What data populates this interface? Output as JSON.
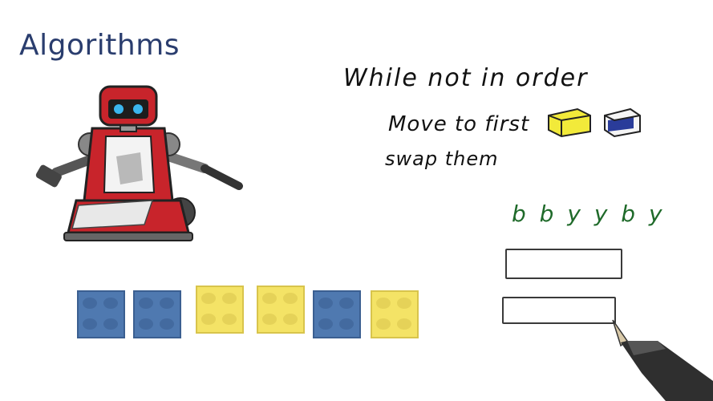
{
  "title": "Algorithms",
  "pseudocode": {
    "line1": "While not in order",
    "line2": "Move to first",
    "line3": "swap them"
  },
  "sequence_label": "b b y y b y",
  "bricks": [
    {
      "color": "blue",
      "hex": "#4f79b0"
    },
    {
      "color": "blue",
      "hex": "#4f79b0"
    },
    {
      "color": "yellow",
      "hex": "#f4e366"
    },
    {
      "color": "yellow",
      "hex": "#f4e366"
    },
    {
      "color": "blue",
      "hex": "#4f79b0"
    },
    {
      "color": "yellow",
      "hex": "#f4e366"
    }
  ],
  "icons": {
    "robot": "robot-illustration",
    "pen": "pen-icon",
    "yellow_brick": "yellow-brick-icon",
    "blue_brick": "blue-brick-icon"
  },
  "colors": {
    "title": "#2a3d6e",
    "robot_red": "#c8242b",
    "sequence_green": "#1f6a2a"
  }
}
